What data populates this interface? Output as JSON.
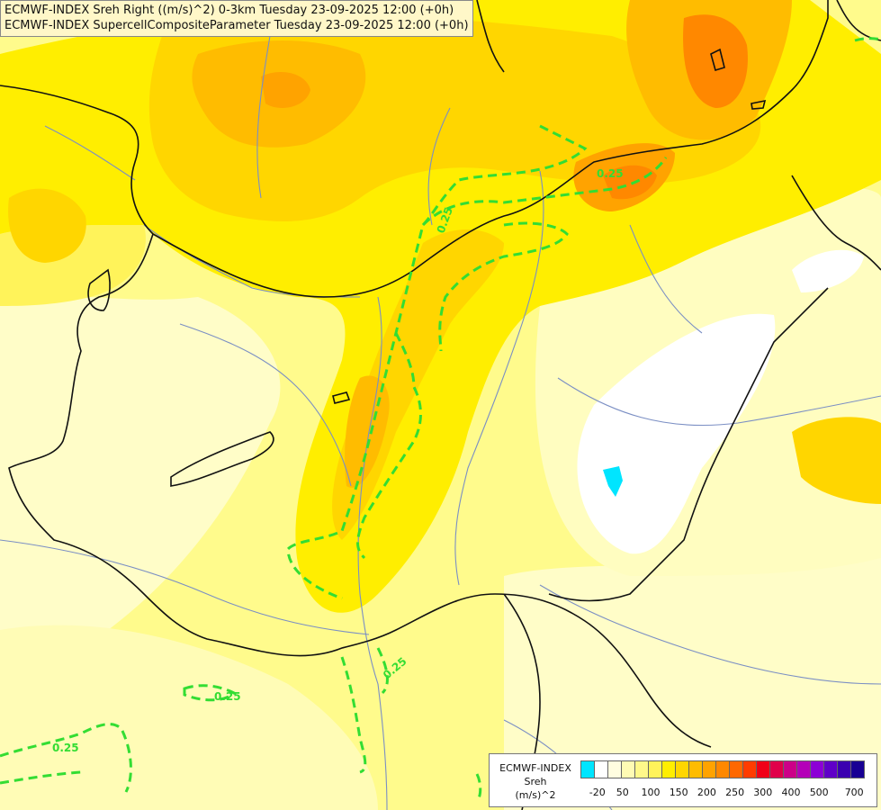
{
  "title": {
    "line1": "ECMWF-INDEX Sreh Right ((m/s)^2) 0-3km Tuesday 23-09-2025 12:00 (+0h)",
    "line2": "ECMWF-INDEX SupercellCompositeParameter Tuesday 23-09-2025 12:00 (+0h)"
  },
  "contour_labels": [
    "0.25",
    "0.25",
    "0.25",
    "0.25",
    "0.25"
  ],
  "legend": {
    "line1": "ECMWF-INDEX",
    "line2": "Sreh",
    "line3": "(m/s)^2",
    "colors": [
      "#00e5ff",
      "#ffffff",
      "#fffde0",
      "#fffbb4",
      "#fff88a",
      "#fff35a",
      "#ffee00",
      "#ffd600",
      "#ffbc00",
      "#ffa300",
      "#ff8800",
      "#ff6800",
      "#ff3c00",
      "#f00018",
      "#e0004a",
      "#cc0088",
      "#b400b8",
      "#8c00d6",
      "#6000c8",
      "#3a00b0",
      "#180094"
    ],
    "ticks": [
      "-20",
      "50",
      "100",
      "150",
      "200",
      "250",
      "300",
      "400",
      "500",
      "700"
    ]
  },
  "colors": {
    "background_fill": "#fffca0",
    "border_lines": "#111111",
    "river_lines": "#7b8fc4",
    "scp_contour": "#33dd33"
  }
}
